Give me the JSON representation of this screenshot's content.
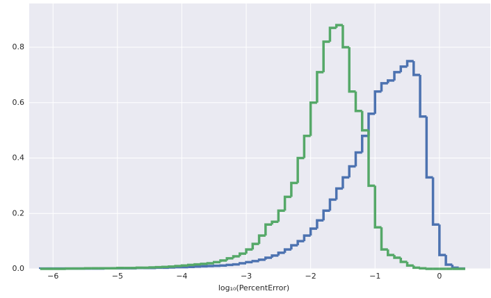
{
  "chart_data": {
    "type": "histogram_step",
    "xlabel": "log₁₀(PercentError)",
    "bins": [
      -6.2,
      -6.1,
      -6,
      -5.9,
      -5.8,
      -5.7,
      -5.6,
      -5.5,
      -5.4,
      -5.3,
      -5.2,
      -5.1,
      -5,
      -4.9,
      -4.8,
      -4.7,
      -4.6,
      -4.5,
      -4.4,
      -4.3,
      -4.2,
      -4.1,
      -4,
      -3.9,
      -3.8,
      -3.7,
      -3.6,
      -3.5,
      -3.4,
      -3.3,
      -3.2,
      -3.1,
      -3,
      -2.9,
      -2.8,
      -2.7,
      -2.6,
      -2.5,
      -2.4,
      -2.3,
      -2.2,
      -2.1,
      -2,
      -1.9,
      -1.8,
      -1.7,
      -1.6,
      -1.5,
      -1.4,
      -1.3,
      -1.2,
      -1.1,
      -1,
      -0.9,
      -0.8,
      -0.7,
      -0.6,
      -0.5,
      -0.4,
      -0.3,
      -0.2,
      -0.1,
      0,
      0.1,
      0.2,
      0.3,
      0.4
    ],
    "series": [
      {
        "color": "#4c72b0",
        "values": [
          0.001,
          0.001,
          0.001,
          0.001,
          0.001,
          0.001,
          0.001,
          0.001,
          0.001,
          0.001,
          0.002,
          0.002,
          0.002,
          0.002,
          0.002,
          0.003,
          0.003,
          0.003,
          0.004,
          0.004,
          0.005,
          0.006,
          0.006,
          0.007,
          0.008,
          0.009,
          0.01,
          0.011,
          0.012,
          0.014,
          0.016,
          0.02,
          0.024,
          0.028,
          0.033,
          0.04,
          0.048,
          0.058,
          0.07,
          0.085,
          0.1,
          0.12,
          0.145,
          0.175,
          0.21,
          0.25,
          0.29,
          0.33,
          0.37,
          0.42,
          0.48,
          0.56,
          0.64,
          0.67,
          0.68,
          0.71,
          0.73,
          0.75,
          0.7,
          0.55,
          0.33,
          0.16,
          0.05,
          0.015,
          0.004,
          0.001
        ]
      },
      {
        "color": "#55a868",
        "values": [
          0,
          0,
          0,
          0,
          0.001,
          0.001,
          0.001,
          0.002,
          0.002,
          0.002,
          0.002,
          0.002,
          0.003,
          0.003,
          0.003,
          0.004,
          0.004,
          0.005,
          0.006,
          0.007,
          0.008,
          0.01,
          0.012,
          0.014,
          0.016,
          0.018,
          0.02,
          0.024,
          0.03,
          0.038,
          0.045,
          0.055,
          0.07,
          0.09,
          0.12,
          0.16,
          0.17,
          0.21,
          0.26,
          0.31,
          0.4,
          0.48,
          0.6,
          0.71,
          0.82,
          0.87,
          0.88,
          0.8,
          0.64,
          0.57,
          0.5,
          0.3,
          0.15,
          0.07,
          0.05,
          0.04,
          0.025,
          0.012,
          0.004,
          0.002,
          0,
          0,
          0,
          0,
          0,
          0
        ]
      }
    ],
    "xlim": [
      -6.37,
      0.79
    ],
    "xticks": [
      {
        "value": -6,
        "label": "−6"
      },
      {
        "value": -5,
        "label": "−5"
      },
      {
        "value": -4,
        "label": "−4"
      },
      {
        "value": -3,
        "label": "−3"
      },
      {
        "value": -2,
        "label": "−2"
      },
      {
        "value": -1,
        "label": "−1"
      },
      0
    ],
    "ylim": [
      0,
      0.958
    ],
    "yticks": [
      {
        "value": 0,
        "label": "0.0"
      },
      0.2,
      0.4,
      0.6,
      0.8
    ],
    "grid": true
  }
}
